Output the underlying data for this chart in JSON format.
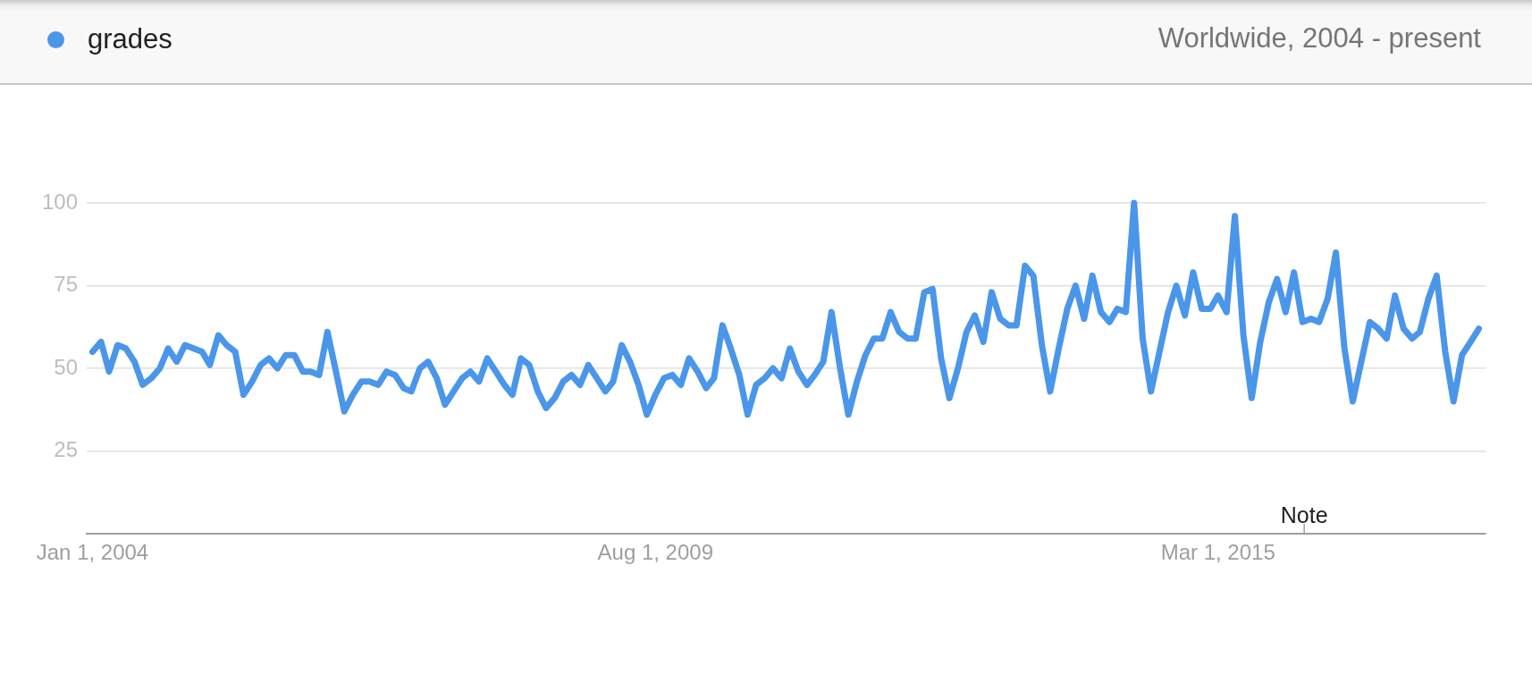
{
  "chart_data": {
    "type": "line",
    "subtitle": "Worldwide, 2004 - present",
    "x": [
      "2004-01",
      "2004-02",
      "2004-03",
      "2004-04",
      "2004-05",
      "2004-06",
      "2004-07",
      "2004-08",
      "2004-09",
      "2004-10",
      "2004-11",
      "2004-12",
      "2005-01",
      "2005-02",
      "2005-03",
      "2005-04",
      "2005-05",
      "2005-06",
      "2005-07",
      "2005-08",
      "2005-09",
      "2005-10",
      "2005-11",
      "2005-12",
      "2006-01",
      "2006-02",
      "2006-03",
      "2006-04",
      "2006-05",
      "2006-06",
      "2006-07",
      "2006-08",
      "2006-09",
      "2006-10",
      "2006-11",
      "2006-12",
      "2007-01",
      "2007-02",
      "2007-03",
      "2007-04",
      "2007-05",
      "2007-06",
      "2007-07",
      "2007-08",
      "2007-09",
      "2007-10",
      "2007-11",
      "2007-12",
      "2008-01",
      "2008-02",
      "2008-03",
      "2008-04",
      "2008-05",
      "2008-06",
      "2008-07",
      "2008-08",
      "2008-09",
      "2008-10",
      "2008-11",
      "2008-12",
      "2009-01",
      "2009-02",
      "2009-03",
      "2009-04",
      "2009-05",
      "2009-06",
      "2009-07",
      "2009-08",
      "2009-09",
      "2009-10",
      "2009-11",
      "2009-12",
      "2010-01",
      "2010-02",
      "2010-03",
      "2010-04",
      "2010-05",
      "2010-06",
      "2010-07",
      "2010-08",
      "2010-09",
      "2010-10",
      "2010-11",
      "2010-12",
      "2011-01",
      "2011-02",
      "2011-03",
      "2011-04",
      "2011-05",
      "2011-06",
      "2011-07",
      "2011-08",
      "2011-09",
      "2011-10",
      "2011-11",
      "2011-12",
      "2012-01",
      "2012-02",
      "2012-03",
      "2012-04",
      "2012-05",
      "2012-06",
      "2012-07",
      "2012-08",
      "2012-09",
      "2012-10",
      "2012-11",
      "2012-12",
      "2013-01",
      "2013-02",
      "2013-03",
      "2013-04",
      "2013-05",
      "2013-06",
      "2013-07",
      "2013-08",
      "2013-09",
      "2013-10",
      "2013-11",
      "2013-12",
      "2014-01",
      "2014-02",
      "2014-03",
      "2014-04",
      "2014-05",
      "2014-06",
      "2014-07",
      "2014-08",
      "2014-09",
      "2014-10",
      "2014-11",
      "2014-12",
      "2015-01",
      "2015-02",
      "2015-03",
      "2015-04",
      "2015-05",
      "2015-06",
      "2015-07",
      "2015-08",
      "2015-09",
      "2015-10",
      "2015-11",
      "2015-12",
      "2016-01",
      "2016-02",
      "2016-03",
      "2016-04",
      "2016-05",
      "2016-06",
      "2016-07",
      "2016-08",
      "2016-09",
      "2016-10",
      "2016-11",
      "2016-12",
      "2017-01",
      "2017-02",
      "2017-03",
      "2017-04",
      "2017-05",
      "2017-06",
      "2017-07",
      "2017-08",
      "2017-09",
      "2017-10"
    ],
    "series": [
      {
        "name": "grades",
        "color": "#4a96ea",
        "values": [
          55,
          58,
          49,
          57,
          56,
          52,
          45,
          47,
          50,
          56,
          52,
          57,
          56,
          55,
          51,
          60,
          57,
          55,
          42,
          46,
          51,
          53,
          50,
          54,
          54,
          49,
          49,
          48,
          61,
          49,
          37,
          42,
          46,
          46,
          45,
          49,
          48,
          44,
          43,
          50,
          52,
          47,
          39,
          43,
          47,
          49,
          46,
          53,
          49,
          45,
          42,
          53,
          51,
          43,
          38,
          41,
          46,
          48,
          45,
          51,
          47,
          43,
          46,
          57,
          52,
          45,
          36,
          42,
          47,
          48,
          45,
          53,
          49,
          44,
          47,
          63,
          56,
          48,
          36,
          45,
          47,
          50,
          47,
          56,
          49,
          45,
          48,
          52,
          67,
          50,
          36,
          46,
          54,
          59,
          59,
          67,
          61,
          59,
          59,
          73,
          74,
          53,
          41,
          50,
          61,
          66,
          58,
          73,
          65,
          63,
          63,
          81,
          78,
          57,
          43,
          56,
          68,
          75,
          65,
          78,
          67,
          64,
          68,
          67,
          100,
          59,
          43,
          55,
          67,
          75,
          66,
          79,
          68,
          68,
          72,
          67,
          96,
          60,
          41,
          58,
          70,
          77,
          67,
          79,
          64,
          65,
          64,
          71,
          85,
          56,
          40,
          52,
          64,
          62,
          59,
          72,
          62,
          59,
          61,
          71,
          78,
          55,
          40,
          54,
          58,
          62
        ]
      }
    ],
    "xlim": [
      "2003-12-11",
      "2017-10-25"
    ],
    "xticks": [
      {
        "value": "2004-01-01",
        "label": "Jan 1, 2004"
      },
      {
        "value": "2009-08-01",
        "label": "Aug 1, 2009"
      },
      {
        "value": "2015-03-01",
        "label": "Mar 1, 2015"
      }
    ],
    "ylim": [
      0,
      100
    ],
    "yticks": [
      25,
      50,
      75,
      100
    ],
    "annotations": [
      "Note"
    ],
    "grid": "y",
    "legend": "top left",
    "marker": "none",
    "line_style": "solid"
  }
}
